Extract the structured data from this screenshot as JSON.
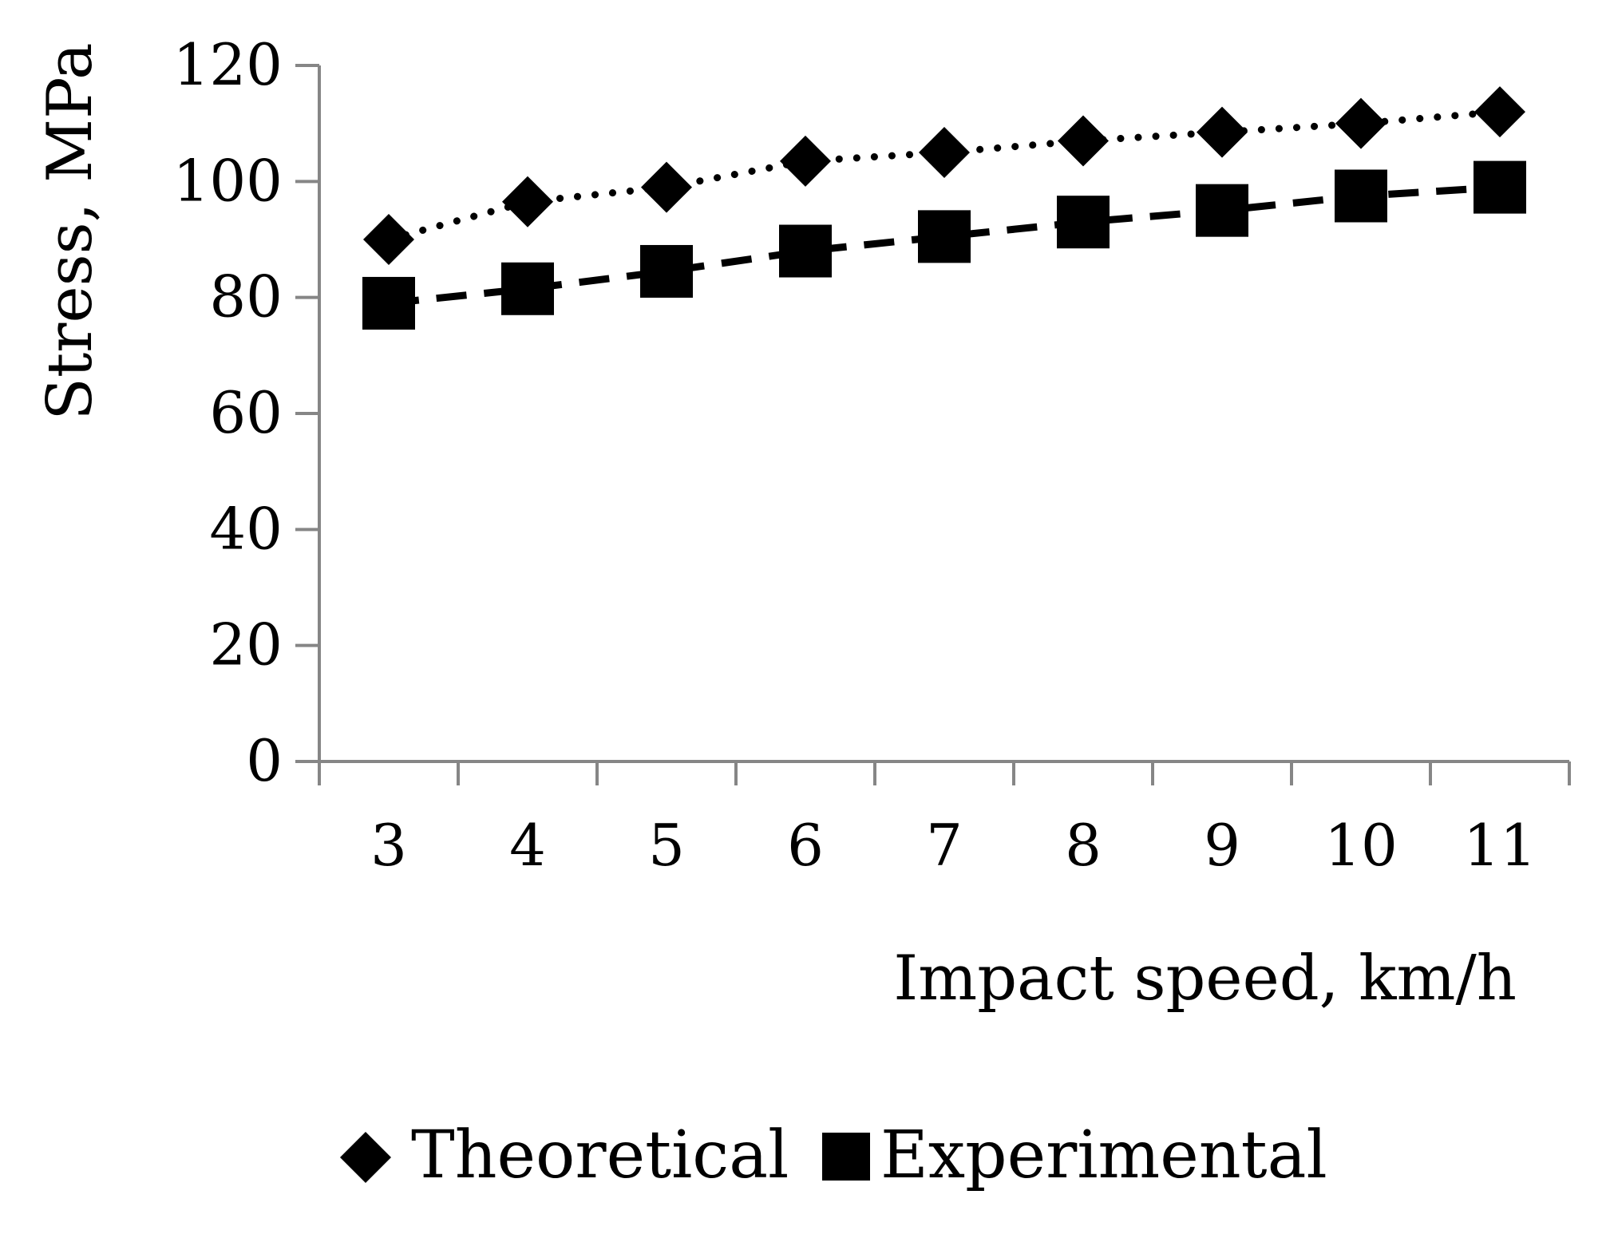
{
  "chart_data": {
    "type": "line",
    "title": "",
    "xlabel": "Impact speed, km/h",
    "ylabel": "Stress, MPa",
    "categories": [
      "3",
      "4",
      "5",
      "6",
      "7",
      "8",
      "9",
      "10",
      "11"
    ],
    "ylim": [
      0,
      120
    ],
    "yticks": [
      "0",
      "20",
      "40",
      "60",
      "80",
      "100",
      "120"
    ],
    "grid": false,
    "legend_position": "bottom",
    "series": [
      {
        "name": "Theoretical",
        "marker": "diamond",
        "line_style": "dotted",
        "color": "#000000",
        "values": [
          90,
          96.5,
          99,
          103.5,
          105,
          107,
          108.5,
          110,
          112
        ]
      },
      {
        "name": "Experimental",
        "marker": "square",
        "line_style": "dashed",
        "color": "#000000",
        "values": [
          79,
          81.5,
          84.5,
          88,
          90.5,
          93,
          95,
          97.5,
          99
        ]
      }
    ],
    "axis_color": "#868686"
  }
}
